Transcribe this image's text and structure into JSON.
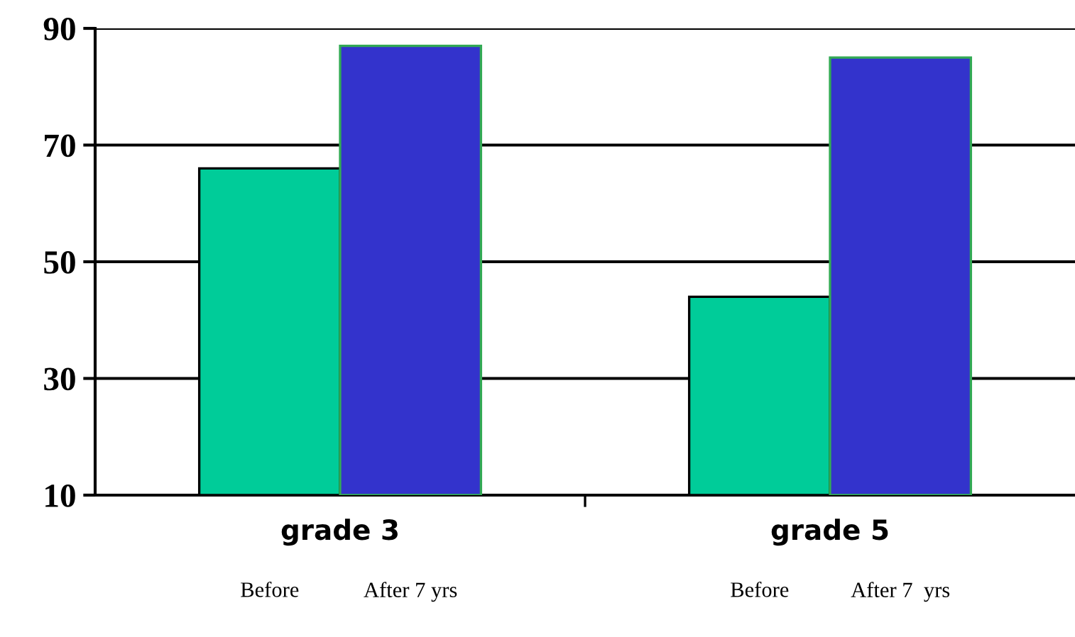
{
  "chart_data": {
    "type": "bar",
    "categories": [
      "grade 3",
      "grade 5"
    ],
    "series": [
      {
        "color": "#00cc99",
        "values": [
          66,
          44
        ]
      },
      {
        "color": "#3333cc",
        "values": [
          87,
          85
        ]
      }
    ],
    "annotations": [
      "Before",
      "After 7 yrs",
      "Before",
      "After 7  yrs"
    ],
    "ylim": [
      10,
      90
    ],
    "yticks": [
      10,
      30,
      50,
      70,
      90
    ],
    "grid": "y",
    "legend": false
  }
}
